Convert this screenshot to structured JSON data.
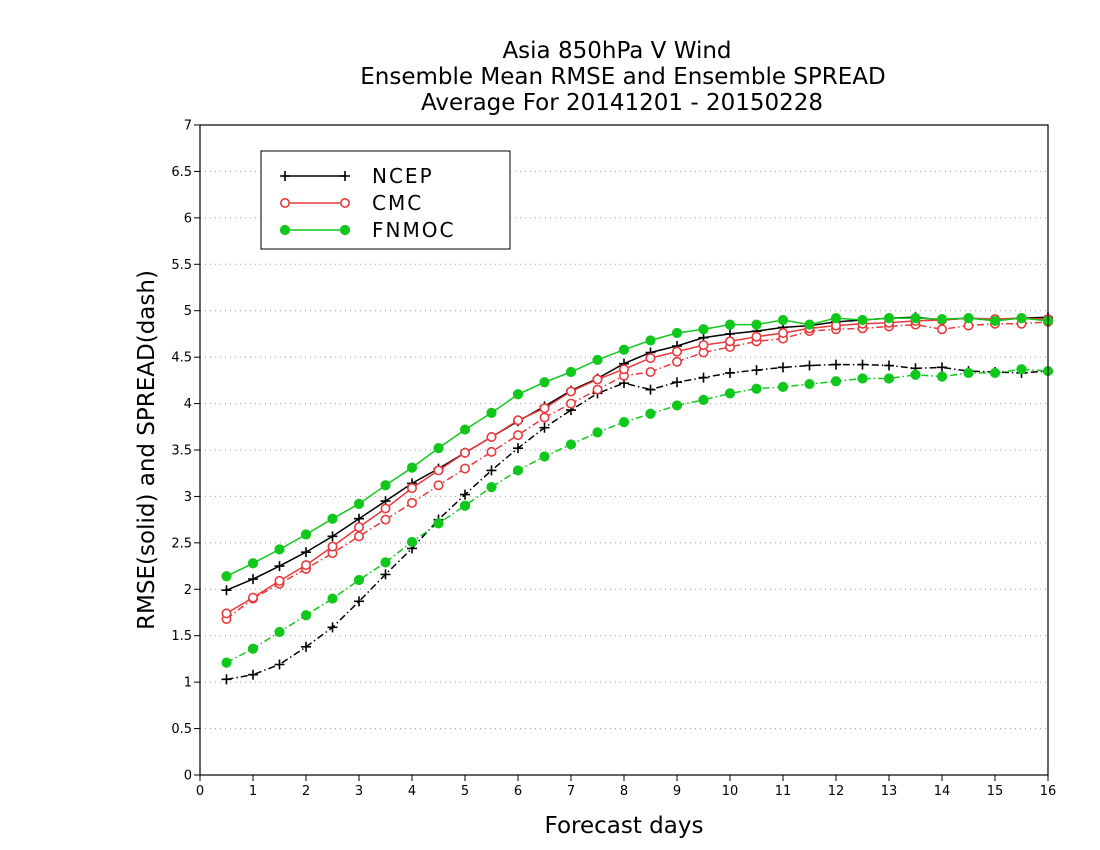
{
  "chart_data": {
    "type": "line",
    "title": [
      "Asia 850hPa V Wind",
      "Ensemble Mean RMSE and Ensemble SPREAD",
      "Average For 20141201 - 20150228"
    ],
    "xlabel": "Forecast days",
    "ylabel": "RMSE(solid) and SPREAD(dash)",
    "xlim": [
      0,
      16
    ],
    "ylim": [
      0,
      7
    ],
    "xticks": [
      "0",
      "1",
      "2",
      "3",
      "4",
      "5",
      "6",
      "7",
      "8",
      "9",
      "10",
      "11",
      "12",
      "13",
      "14",
      "15",
      "16"
    ],
    "yticks": [
      "0",
      "0.5",
      "1",
      "1.5",
      "2",
      "2.5",
      "3",
      "3.5",
      "4",
      "4.5",
      "5",
      "5.5",
      "6",
      "6.5",
      "7"
    ],
    "grid": "horizontal dotted",
    "legend_position": "top-left",
    "x": [
      0.5,
      1,
      1.5,
      2,
      2.5,
      3,
      3.5,
      4,
      4.5,
      5,
      5.5,
      6,
      6.5,
      7,
      7.5,
      8,
      8.5,
      9,
      9.5,
      10,
      10.5,
      11,
      11.5,
      12,
      12.5,
      13,
      13.5,
      14,
      14.5,
      15,
      15.5,
      16
    ],
    "series": [
      {
        "name": "NCEP",
        "color": "#000000",
        "marker": "plus",
        "rmse": [
          1.99,
          2.11,
          2.25,
          2.4,
          2.57,
          2.76,
          2.95,
          3.14,
          3.3,
          3.47,
          3.64,
          3.81,
          3.97,
          4.14,
          4.27,
          4.43,
          4.55,
          4.62,
          4.71,
          4.75,
          4.78,
          4.82,
          4.84,
          4.88,
          4.9,
          4.92,
          4.93,
          4.9,
          4.92,
          4.9,
          4.92,
          4.93
        ],
        "spread": [
          1.03,
          1.08,
          1.19,
          1.38,
          1.59,
          1.87,
          2.16,
          2.44,
          2.75,
          3.02,
          3.28,
          3.52,
          3.74,
          3.93,
          4.11,
          4.22,
          4.15,
          4.23,
          4.28,
          4.33,
          4.36,
          4.39,
          4.41,
          4.42,
          4.42,
          4.41,
          4.38,
          4.39,
          4.35,
          4.34,
          4.33,
          4.35
        ]
      },
      {
        "name": "CMC",
        "color": "#e8393d",
        "marker": "circle-open",
        "rmse": [
          1.74,
          1.91,
          2.09,
          2.26,
          2.46,
          2.67,
          2.87,
          3.09,
          3.28,
          3.47,
          3.64,
          3.82,
          3.95,
          4.13,
          4.26,
          4.37,
          4.49,
          4.56,
          4.63,
          4.67,
          4.72,
          4.76,
          4.81,
          4.84,
          4.86,
          4.87,
          4.89,
          4.9,
          4.92,
          4.91,
          4.92,
          4.91
        ],
        "spread": [
          1.68,
          1.9,
          2.06,
          2.22,
          2.39,
          2.57,
          2.75,
          2.93,
          3.12,
          3.3,
          3.48,
          3.66,
          3.85,
          4.0,
          4.15,
          4.3,
          4.34,
          4.45,
          4.55,
          4.61,
          4.67,
          4.7,
          4.78,
          4.8,
          4.81,
          4.83,
          4.85,
          4.8,
          4.84,
          4.86,
          4.86,
          4.88
        ]
      },
      {
        "name": "FNMOC",
        "color": "#10c81c",
        "marker": "circle-filled",
        "rmse": [
          2.14,
          2.28,
          2.43,
          2.59,
          2.76,
          2.92,
          3.12,
          3.31,
          3.52,
          3.72,
          3.9,
          4.1,
          4.23,
          4.34,
          4.47,
          4.58,
          4.68,
          4.76,
          4.8,
          4.85,
          4.85,
          4.9,
          4.85,
          4.92,
          4.9,
          4.92,
          4.92,
          4.91,
          4.92,
          4.89,
          4.92,
          4.89
        ],
        "spread": [
          1.21,
          1.36,
          1.54,
          1.72,
          1.9,
          2.1,
          2.29,
          2.51,
          2.71,
          2.9,
          3.1,
          3.28,
          3.43,
          3.56,
          3.69,
          3.8,
          3.89,
          3.98,
          4.04,
          4.11,
          4.16,
          4.18,
          4.21,
          4.24,
          4.27,
          4.27,
          4.31,
          4.29,
          4.33,
          4.33,
          4.37,
          4.35
        ]
      }
    ]
  }
}
